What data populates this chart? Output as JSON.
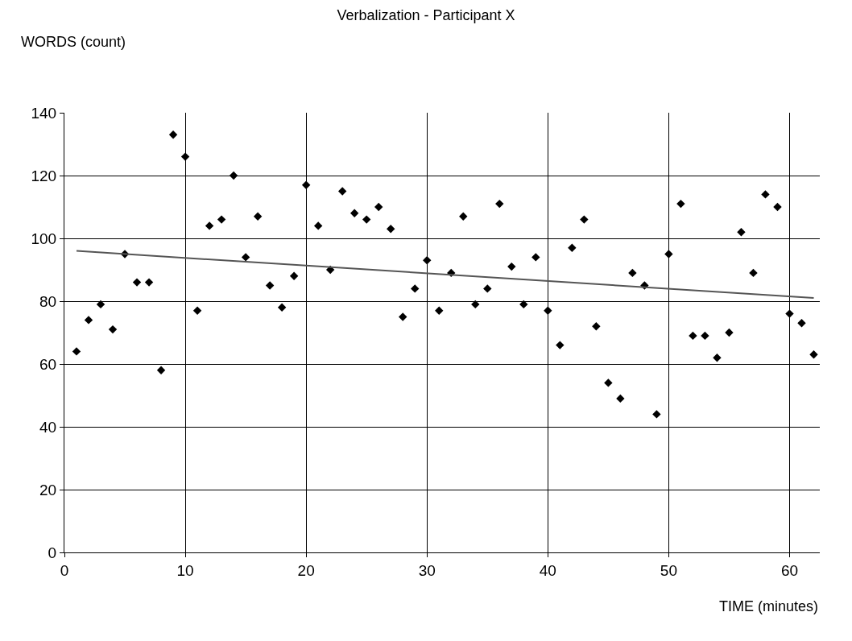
{
  "chart_data": {
    "type": "scatter",
    "title": "Verbalization - Participant X",
    "xlabel": "TIME (minutes)",
    "ylabel": "WORDS (count)",
    "xlim": [
      0,
      62.5
    ],
    "xticks": [
      0,
      10,
      20,
      30,
      40,
      50,
      60
    ],
    "ylim": [
      0,
      140
    ],
    "yticks": [
      0,
      20,
      40,
      60,
      80,
      100,
      120,
      140
    ],
    "grid": true,
    "series": [
      {
        "marker": "diamond",
        "color": "#000000",
        "x": [
          1,
          2,
          3,
          4,
          5,
          6,
          7,
          8,
          9,
          10,
          11,
          12,
          13,
          14,
          15,
          16,
          17,
          18,
          19,
          20,
          21,
          22,
          23,
          24,
          25,
          26,
          27,
          28,
          29,
          30,
          31,
          32,
          33,
          34,
          35,
          36,
          37,
          38,
          39,
          40,
          41,
          42,
          43,
          44,
          45,
          46,
          47,
          48,
          49,
          50,
          51,
          52,
          53,
          54,
          55,
          56,
          57,
          58,
          59,
          60,
          61,
          62
        ],
        "values": [
          64,
          74,
          79,
          71,
          95,
          86,
          86,
          58,
          133,
          126,
          77,
          104,
          106,
          120,
          94,
          107,
          85,
          78,
          88,
          117,
          104,
          90,
          115,
          108,
          106,
          110,
          103,
          75,
          84,
          93,
          77,
          89,
          107,
          79,
          84,
          111,
          91,
          79,
          94,
          77,
          66,
          97,
          106,
          72,
          54,
          49,
          89,
          85,
          44,
          95,
          111,
          69,
          69,
          62,
          70,
          102,
          89,
          114,
          110,
          76,
          73,
          63
        ]
      },
      {
        "type": "line",
        "marker": "none",
        "color": "#555555",
        "line_style": "solid",
        "x": [
          1,
          62
        ],
        "values": [
          96,
          81
        ]
      }
    ]
  }
}
